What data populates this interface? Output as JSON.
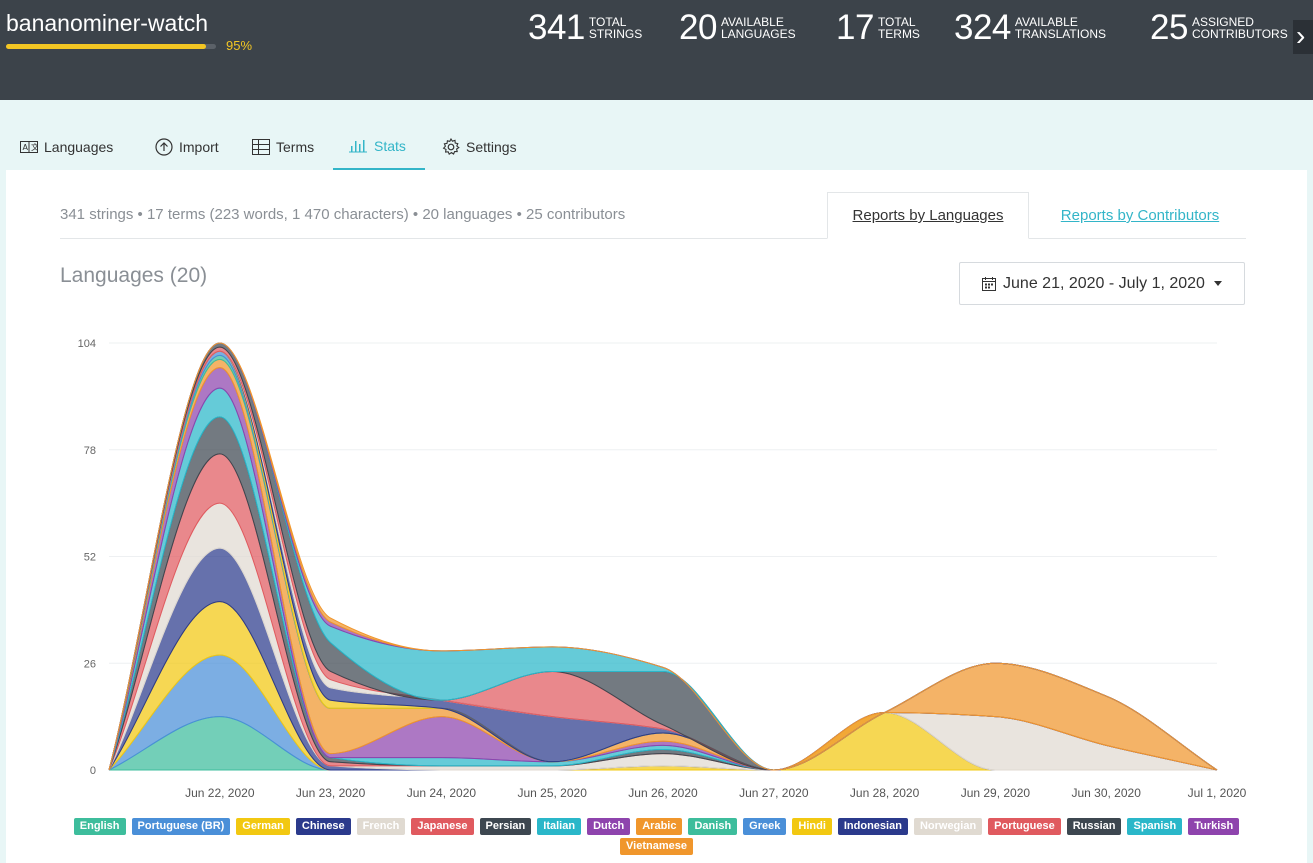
{
  "header": {
    "project_name": "bananominer-watch",
    "progress": 0.95,
    "progress_label": "95%",
    "stats": [
      {
        "value": "341",
        "label_line1": "TOTAL",
        "label_line2": "STRINGS"
      },
      {
        "value": "20",
        "label_line1": "AVAILABLE",
        "label_line2": "LANGUAGES"
      },
      {
        "value": "17",
        "label_line1": "TOTAL",
        "label_line2": "TERMS"
      },
      {
        "value": "324",
        "label_line1": "AVAILABLE",
        "label_line2": "TRANSLATIONS"
      },
      {
        "value": "25",
        "label_line1": "ASSIGNED",
        "label_line2": "CONTRIBUTORS"
      }
    ],
    "next_icon": "chevron-right-icon"
  },
  "tabs": [
    {
      "label": "Languages",
      "icon": "languages-icon"
    },
    {
      "label": "Import",
      "icon": "upload-icon"
    },
    {
      "label": "Terms",
      "icon": "table-icon"
    },
    {
      "label": "Stats",
      "icon": "bar-chart-icon",
      "active": true
    },
    {
      "label": "Settings",
      "icon": "gear-icon"
    }
  ],
  "summary": "341 strings • 17 terms (223 words, 1 470 characters) • 20 languages • 25 contributors",
  "report_tabs": {
    "by_languages": "Reports by Languages",
    "by_contributors": "Reports by Contributors"
  },
  "section_title": "Languages (20)",
  "date_range": "June 21, 2020 - July 1, 2020",
  "accent_color": "#33b5c8",
  "chart_data": {
    "type": "area",
    "stacked": true,
    "smooth": true,
    "categories": [
      "Jun 21, 2020",
      "Jun 22, 2020",
      "Jun 23, 2020",
      "Jun 24, 2020",
      "Jun 25, 2020",
      "Jun 26, 2020",
      "Jun 27, 2020",
      "Jun 28, 2020",
      "Jun 29, 2020",
      "Jun 30, 2020",
      "Jul 1, 2020"
    ],
    "tick_labels": [
      "Jun 22, 2020",
      "Jun 23, 2020",
      "Jun 24, 2020",
      "Jun 25, 2020",
      "Jun 26, 2020",
      "Jun 27, 2020",
      "Jun 28, 2020",
      "Jun 29, 2020",
      "Jun 30, 2020",
      "Jul 1, 2020"
    ],
    "y_ticks": [
      0,
      26,
      52,
      78,
      104
    ],
    "ylim": [
      0,
      104
    ],
    "grid": true,
    "legend_position": "bottom",
    "series": [
      {
        "name": "English",
        "color": "#3dbd9c",
        "values": [
          0,
          13,
          0,
          0,
          0,
          0,
          0,
          0,
          0,
          0,
          0
        ]
      },
      {
        "name": "Portuguese (BR)",
        "color": "#4a8fd8",
        "values": [
          0,
          15,
          0,
          0,
          0,
          0,
          0,
          0,
          0,
          0,
          0
        ]
      },
      {
        "name": "German",
        "color": "#f2c811",
        "values": [
          0,
          13,
          0,
          0,
          0,
          1,
          0,
          14,
          0,
          0,
          0
        ]
      },
      {
        "name": "Chinese",
        "color": "#2b3a8c",
        "values": [
          0,
          13,
          1,
          0,
          0,
          0,
          0,
          0,
          0,
          0,
          0
        ]
      },
      {
        "name": "French",
        "color": "#e0dad1",
        "values": [
          0,
          11,
          0,
          1,
          1,
          3,
          0,
          0,
          13,
          6,
          0
        ]
      },
      {
        "name": "Japanese",
        "color": "#e05a5f",
        "values": [
          0,
          12,
          1,
          0,
          0,
          0,
          0,
          0,
          0,
          0,
          0
        ]
      },
      {
        "name": "Persian",
        "color": "#3d4750",
        "values": [
          0,
          9,
          1,
          0,
          0,
          1,
          0,
          0,
          0,
          0,
          0
        ]
      },
      {
        "name": "Italian",
        "color": "#2ab7c9",
        "values": [
          0,
          7,
          0,
          2,
          1,
          1,
          0,
          0,
          0,
          0,
          0
        ]
      },
      {
        "name": "Dutch",
        "color": "#8e44ad",
        "values": [
          0,
          5,
          1,
          10,
          0,
          1,
          0,
          0,
          0,
          0,
          0
        ]
      },
      {
        "name": "Arabic",
        "color": "#f0962c",
        "values": [
          0,
          2,
          11,
          2,
          0,
          2,
          0,
          0,
          13,
          12,
          0
        ]
      },
      {
        "name": "Danish",
        "color": "#3dbd9c",
        "values": [
          0,
          1,
          0,
          0,
          0,
          0,
          0,
          0,
          0,
          0,
          0
        ]
      },
      {
        "name": "Greek",
        "color": "#4a8fd8",
        "values": [
          0,
          1,
          0,
          0,
          0,
          0,
          0,
          0,
          0,
          0,
          0
        ]
      },
      {
        "name": "Hindi",
        "color": "#f2c811",
        "values": [
          0,
          0,
          2,
          0,
          0,
          0,
          0,
          0,
          0,
          0,
          0
        ]
      },
      {
        "name": "Indonesian",
        "color": "#2b3a8c",
        "values": [
          0,
          0,
          3,
          2,
          11,
          1,
          0,
          0,
          0,
          0,
          0
        ]
      },
      {
        "name": "Norwegian",
        "color": "#e0dad1",
        "values": [
          0,
          0,
          2,
          0,
          0,
          0,
          0,
          0,
          0,
          0,
          0
        ]
      },
      {
        "name": "Portuguese",
        "color": "#e05a5f",
        "values": [
          0,
          1,
          2,
          0,
          11,
          1,
          0,
          0,
          0,
          0,
          0
        ]
      },
      {
        "name": "Russian",
        "color": "#3d4750",
        "values": [
          0,
          1,
          7,
          0,
          0,
          13,
          0,
          0,
          0,
          0,
          0
        ]
      },
      {
        "name": "Spanish",
        "color": "#2ab7c9",
        "values": [
          0,
          0,
          4,
          12,
          6,
          1,
          0,
          0,
          0,
          0,
          0
        ]
      },
      {
        "name": "Turkish",
        "color": "#8e44ad",
        "values": [
          0,
          0,
          1,
          0,
          0,
          0,
          0,
          0,
          0,
          0,
          0
        ]
      },
      {
        "name": "Vietnamese",
        "color": "#f0962c",
        "values": [
          0,
          0,
          1,
          0,
          0,
          0,
          0,
          0,
          0,
          0,
          0
        ]
      }
    ]
  }
}
